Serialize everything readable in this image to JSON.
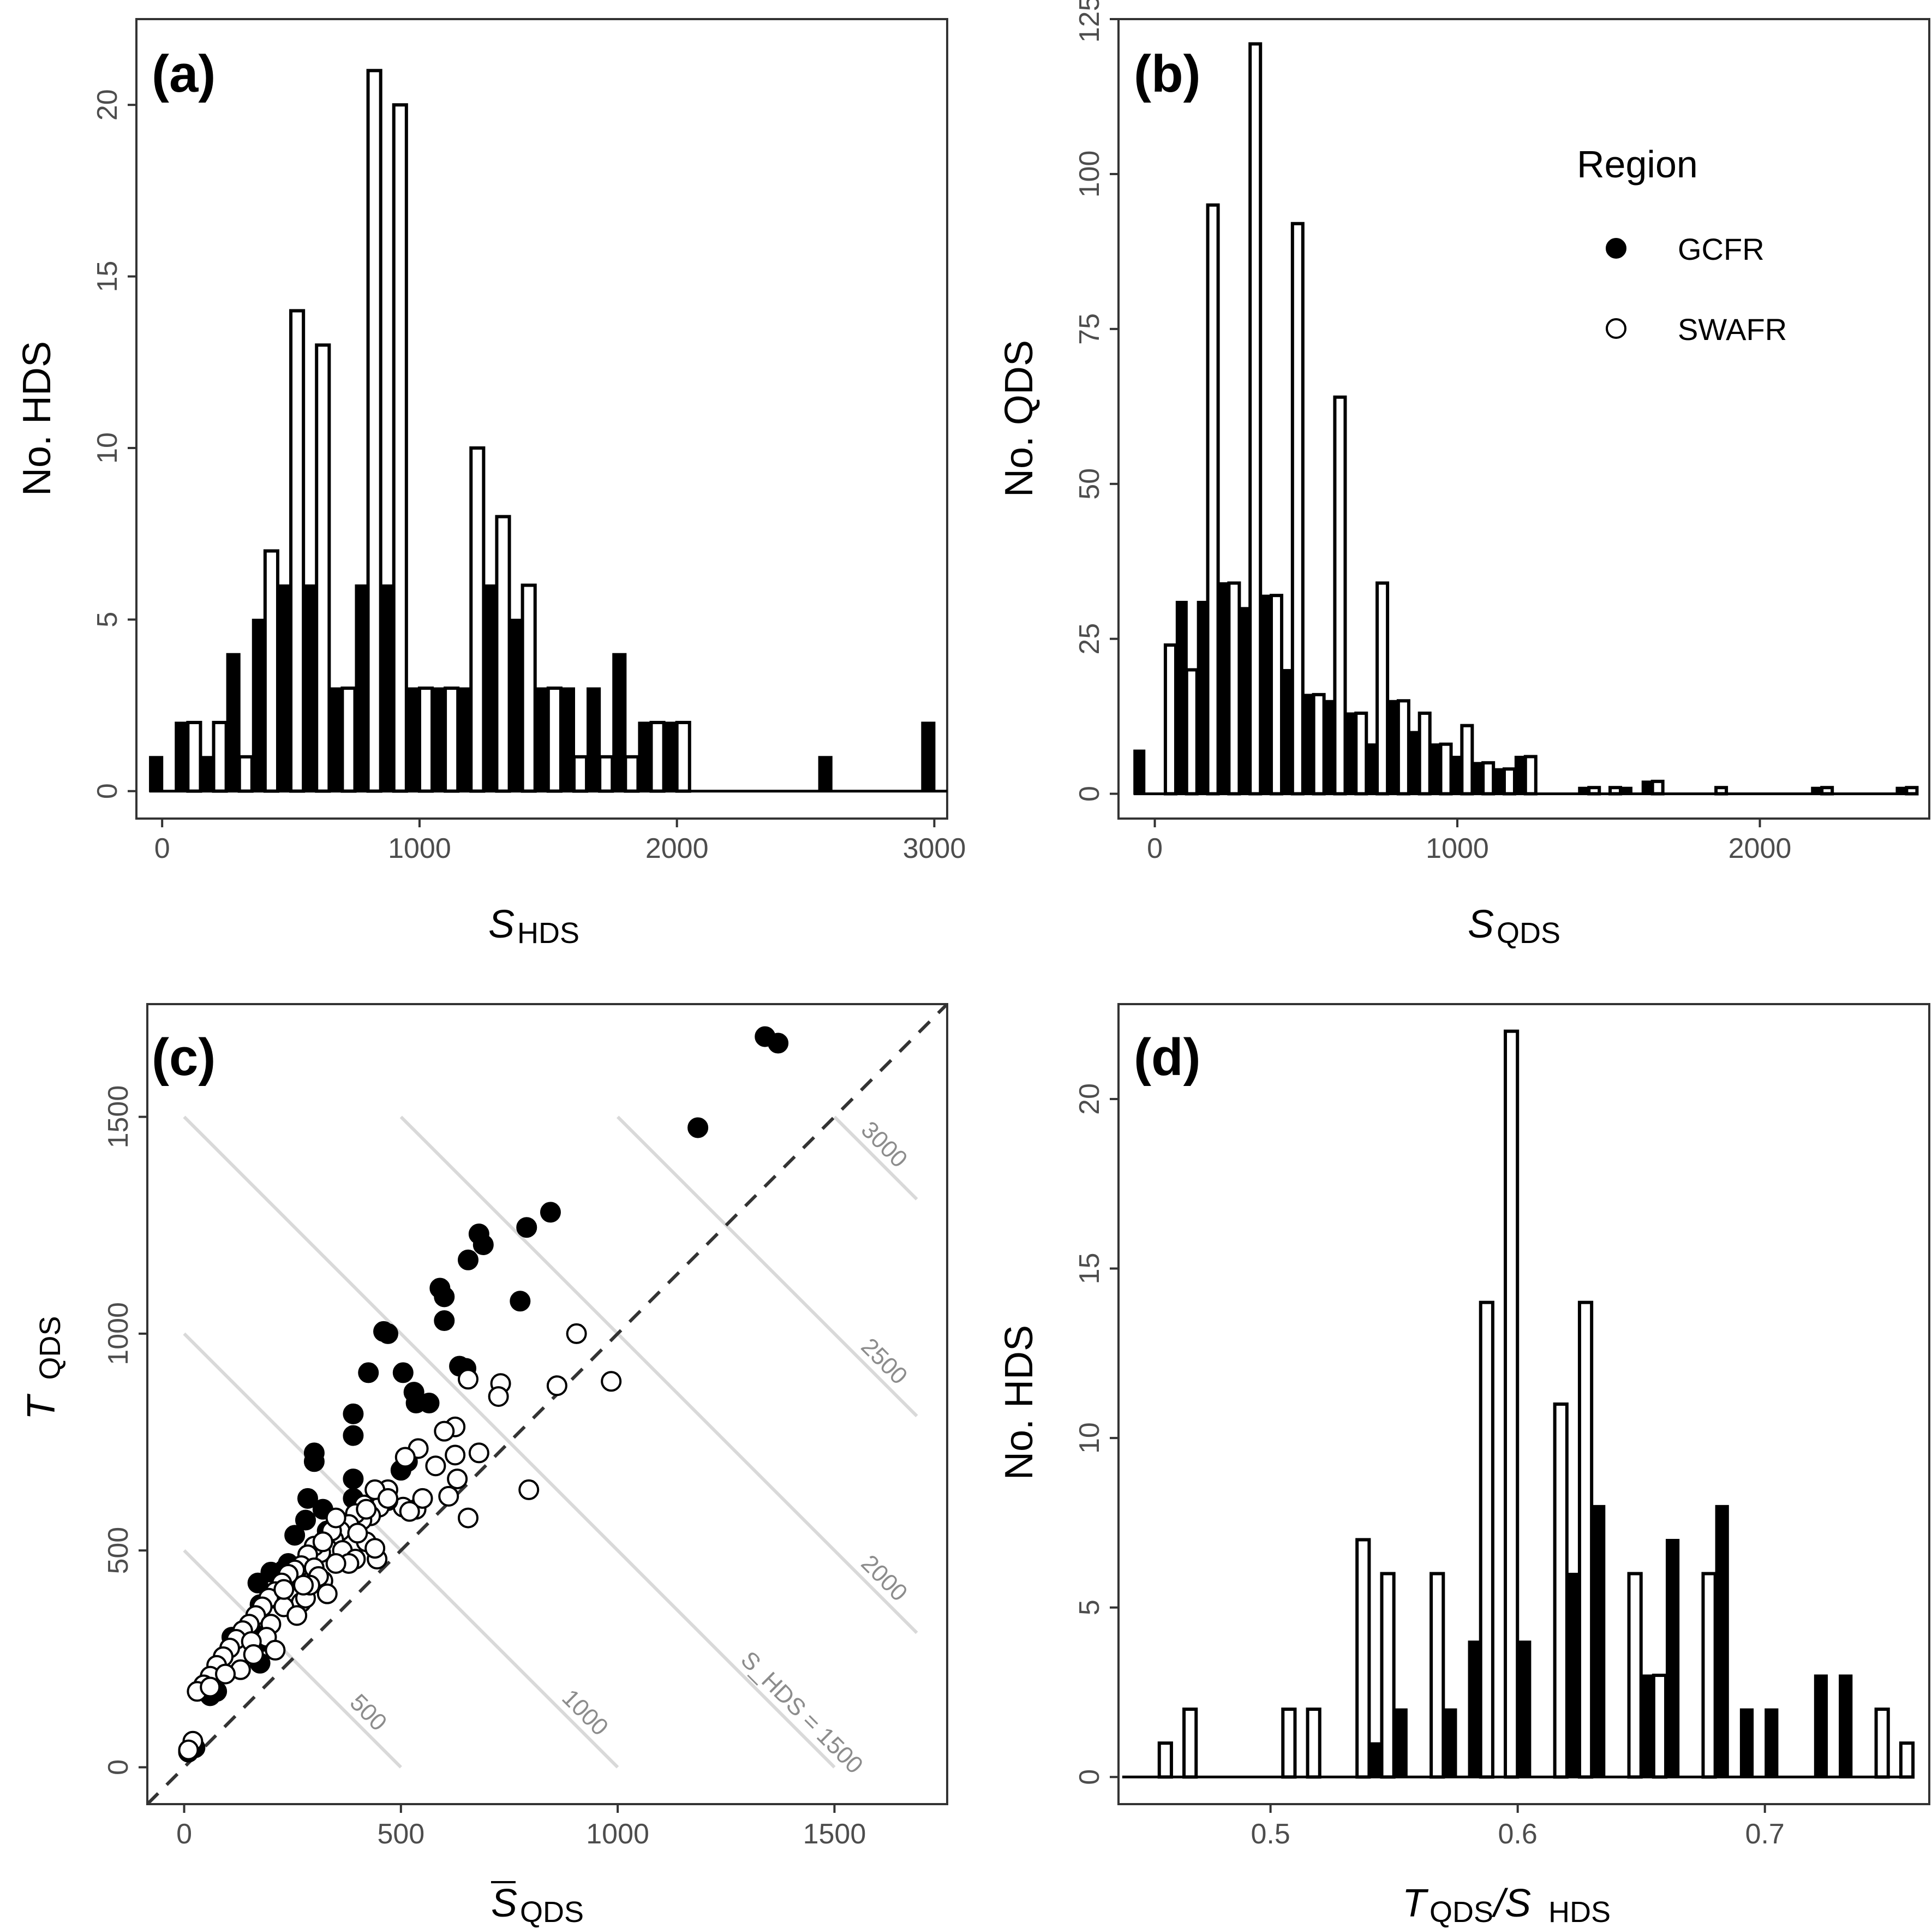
{
  "colors": {
    "gcfr": "#000000",
    "swafr": "#ffffff",
    "outline": "#000000",
    "frame": "#333333",
    "iso_line": "#d9d9d9",
    "diagonal": "#333333",
    "tick_text": "#4d4d4d"
  },
  "legend": {
    "title": "Region",
    "placement": "top-right (panel b)",
    "items": [
      {
        "label": "GCFR",
        "marker": "filled-circle"
      },
      {
        "label": "SWAFR",
        "marker": "open-circle"
      }
    ]
  },
  "chart_data": [
    {
      "panel": "(a)",
      "type": "bar",
      "histogram": true,
      "xlabel": "S",
      "xlabel_sub": "HDS",
      "ylabel": "No. HDS",
      "xlim": [
        -100,
        3050
      ],
      "ylim": [
        -0.8,
        22.5
      ],
      "xticks": [
        0,
        1000,
        2000,
        3000
      ],
      "yticks": [
        0,
        5,
        10,
        15,
        20
      ],
      "bin_width": 100,
      "x": [
        0,
        100,
        200,
        300,
        400,
        500,
        600,
        700,
        800,
        900,
        1000,
        1100,
        1200,
        1300,
        1400,
        1500,
        1600,
        1700,
        1800,
        1900,
        2000,
        2100,
        2200,
        2300,
        2400,
        2500,
        2600,
        2700,
        2800,
        2900,
        3000
      ],
      "series": [
        {
          "name": "GCFR",
          "values": [
            1,
            2,
            1,
            4,
            5,
            6,
            6,
            3,
            6,
            6,
            3,
            3,
            3,
            6,
            5,
            3,
            3,
            3,
            4,
            2,
            2,
            0,
            0,
            0,
            0,
            0,
            1,
            0,
            0,
            0,
            2
          ]
        },
        {
          "name": "SWAFR",
          "values": [
            0,
            2,
            2,
            1,
            7,
            14,
            13,
            3,
            21,
            20,
            3,
            3,
            10,
            8,
            6,
            3,
            1,
            1,
            1,
            2,
            2,
            0,
            0,
            0,
            0,
            0,
            0,
            0,
            0,
            0,
            0
          ]
        }
      ]
    },
    {
      "panel": "(b)",
      "type": "bar",
      "histogram": true,
      "xlabel": "S",
      "xlabel_sub": "QDS",
      "ylabel": "No. QDS",
      "xlim": [
        -120,
        2560
      ],
      "ylim": [
        -4,
        125
      ],
      "xticks": [
        0,
        1000,
        2000
      ],
      "yticks": [
        0,
        25,
        50,
        75,
        100,
        125
      ],
      "bin_width": 70,
      "x": [
        -35,
        35,
        105,
        175,
        245,
        315,
        385,
        455,
        525,
        595,
        665,
        735,
        805,
        875,
        945,
        1015,
        1085,
        1155,
        1225,
        1295,
        1365,
        1435,
        1505,
        1575,
        1645,
        1715,
        1785,
        1855,
        1925,
        1995,
        2065,
        2135,
        2205,
        2275,
        2345,
        2415,
        2485
      ],
      "series": [
        {
          "name": "GCFR",
          "values": [
            7,
            0,
            31,
            31,
            34,
            30,
            32,
            20,
            16,
            15,
            13,
            8,
            15,
            10,
            8,
            6,
            5,
            4,
            6,
            0,
            0,
            1,
            0,
            1,
            2,
            0,
            0,
            0,
            0,
            0,
            0,
            0,
            1,
            0,
            0,
            0,
            1
          ]
        },
        {
          "name": "SWAFR",
          "values": [
            0,
            24,
            20,
            95,
            34,
            121,
            32,
            92,
            16,
            64,
            13,
            34,
            15,
            13,
            8,
            11,
            5,
            4,
            6,
            0,
            0,
            1,
            1,
            0,
            2,
            0,
            0,
            1,
            0,
            0,
            0,
            0,
            1,
            0,
            0,
            0,
            1
          ]
        }
      ]
    },
    {
      "panel": "(c)",
      "type": "scatter",
      "xlabel": "S",
      "xlabel_sub": "QDS",
      "xlabel_overbar": true,
      "ylabel": "T",
      "ylabel_sub": "QDS",
      "xlim": [
        -85,
        1760
      ],
      "ylim": [
        -85,
        1760
      ],
      "xticks": [
        0,
        500,
        1000,
        1500
      ],
      "yticks": [
        0,
        500,
        1000,
        1500
      ],
      "reference_line": "1:1 dashed",
      "isolines": {
        "values": [
          500,
          1000,
          1500,
          2000,
          2500,
          3000
        ],
        "labels": [
          "500",
          "1000",
          "S_HDS = 1500",
          "2000",
          "2500",
          "3000"
        ]
      },
      "series": [
        {
          "name": "GCFR",
          "points": [
            [
              1340,
              1685
            ],
            [
              1370,
              1670
            ],
            [
              1185,
              1475
            ],
            [
              845,
              1280
            ],
            [
              790,
              1245
            ],
            [
              680,
              1230
            ],
            [
              690,
              1205
            ],
            [
              655,
              1170
            ],
            [
              590,
              1105
            ],
            [
              600,
              1085
            ],
            [
              600,
              1030
            ],
            [
              775,
              1075
            ],
            [
              460,
              1005
            ],
            [
              470,
              1000
            ],
            [
              425,
              910
            ],
            [
              505,
              910
            ],
            [
              530,
              865
            ],
            [
              565,
              840
            ],
            [
              535,
              840
            ],
            [
              635,
              925
            ],
            [
              650,
              920
            ],
            [
              390,
              815
            ],
            [
              390,
              765
            ],
            [
              500,
              685
            ],
            [
              515,
              705
            ],
            [
              300,
              725
            ],
            [
              300,
              705
            ],
            [
              390,
              665
            ],
            [
              285,
              620
            ],
            [
              320,
              595
            ],
            [
              280,
              570
            ],
            [
              330,
              545
            ],
            [
              390,
              620
            ],
            [
              255,
              535
            ],
            [
              230,
              455
            ],
            [
              200,
              450
            ],
            [
              205,
              390
            ],
            [
              170,
              425
            ],
            [
              175,
              375
            ],
            [
              110,
              300
            ],
            [
              180,
              290
            ],
            [
              175,
              240
            ],
            [
              75,
              175
            ],
            [
              60,
              165
            ],
            [
              10,
              35
            ],
            [
              25,
              45
            ],
            [
              155,
              315
            ],
            [
              240,
              470
            ]
          ]
        },
        {
          "name": "SWAFR",
          "points": [
            [
              905,
              1000
            ],
            [
              985,
              890
            ],
            [
              860,
              880
            ],
            [
              730,
              885
            ],
            [
              725,
              855
            ],
            [
              655,
              895
            ],
            [
              795,
              640
            ],
            [
              680,
              725
            ],
            [
              625,
              785
            ],
            [
              600,
              775
            ],
            [
              580,
              695
            ],
            [
              625,
              720
            ],
            [
              630,
              665
            ],
            [
              610,
              625
            ],
            [
              655,
              575
            ],
            [
              535,
              595
            ],
            [
              505,
              600
            ],
            [
              540,
              735
            ],
            [
              510,
              715
            ],
            [
              470,
              640
            ],
            [
              470,
              615
            ],
            [
              450,
              600
            ],
            [
              440,
              640
            ],
            [
              430,
              580
            ],
            [
              415,
              605
            ],
            [
              410,
              570
            ],
            [
              395,
              585
            ],
            [
              380,
              560
            ],
            [
              360,
              545
            ],
            [
              345,
              525
            ],
            [
              330,
              505
            ],
            [
              315,
              495
            ],
            [
              300,
              510
            ],
            [
              285,
              490
            ],
            [
              270,
              465
            ],
            [
              255,
              455
            ],
            [
              240,
              445
            ],
            [
              225,
              425
            ],
            [
              210,
              405
            ],
            [
              195,
              390
            ],
            [
              180,
              370
            ],
            [
              165,
              350
            ],
            [
              150,
              330
            ],
            [
              135,
              315
            ],
            [
              120,
              295
            ],
            [
              105,
              275
            ],
            [
              90,
              255
            ],
            [
              75,
              235
            ],
            [
              60,
              210
            ],
            [
              45,
              190
            ],
            [
              30,
              175
            ],
            [
              250,
              400
            ],
            [
              270,
              380
            ],
            [
              300,
              460
            ],
            [
              320,
              430
            ],
            [
              330,
              400
            ],
            [
              340,
              545
            ],
            [
              350,
              575
            ],
            [
              280,
              390
            ],
            [
              230,
              370
            ],
            [
              260,
              350
            ],
            [
              200,
              330
            ],
            [
              190,
              300
            ],
            [
              210,
              270
            ],
            [
              155,
              290
            ],
            [
              160,
              260
            ],
            [
              130,
              225
            ],
            [
              95,
              215
            ],
            [
              60,
              185
            ],
            [
              20,
              60
            ],
            [
              10,
              40
            ],
            [
              365,
              500
            ],
            [
              420,
              520
            ],
            [
              445,
              480
            ],
            [
              440,
              505
            ],
            [
              395,
              480
            ],
            [
              380,
              470
            ],
            [
              310,
              440
            ],
            [
              290,
              420
            ],
            [
              350,
              470
            ],
            [
              230,
              410
            ],
            [
              400,
              540
            ],
            [
              420,
              595
            ],
            [
              470,
              620
            ],
            [
              550,
              620
            ],
            [
              520,
              590
            ],
            [
              320,
              520
            ],
            [
              275,
              420
            ]
          ]
        }
      ]
    },
    {
      "panel": "(d)",
      "type": "bar",
      "histogram": true,
      "xlabel": "T",
      "xlabel_sub": "QDS",
      "xlabel_mid": "/S",
      "xlabel_sub2": "HDS",
      "ylabel": "No. HDS",
      "xlim": [
        0.4385,
        0.7665
      ],
      "ylim": [
        -0.8,
        22.8
      ],
      "xticks": [
        0.5,
        0.6,
        0.7
      ],
      "yticks": [
        0,
        5,
        10,
        15,
        20
      ],
      "bin_width": 0.01,
      "x": [
        0.445,
        0.455,
        0.465,
        0.475,
        0.485,
        0.495,
        0.505,
        0.515,
        0.525,
        0.535,
        0.545,
        0.555,
        0.565,
        0.575,
        0.585,
        0.595,
        0.605,
        0.615,
        0.625,
        0.635,
        0.645,
        0.655,
        0.665,
        0.675,
        0.685,
        0.695,
        0.705,
        0.715,
        0.725,
        0.735,
        0.745,
        0.755
      ],
      "series": [
        {
          "name": "GCFR",
          "values": [
            0,
            0,
            0,
            0,
            0,
            0,
            0,
            0,
            0,
            0,
            1,
            2,
            0,
            2,
            4,
            0,
            4,
            0,
            6,
            8,
            0,
            3,
            7,
            0,
            8,
            2,
            2,
            0,
            3,
            3,
            0,
            0
          ]
        },
        {
          "name": "SWAFR",
          "values": [
            0,
            1,
            2,
            0,
            0,
            0,
            2,
            2,
            0,
            7,
            6,
            0,
            6,
            0,
            14,
            22,
            0,
            11,
            14,
            0,
            6,
            3,
            0,
            6,
            0,
            0,
            0,
            0,
            0,
            0,
            2,
            1
          ]
        }
      ]
    }
  ]
}
